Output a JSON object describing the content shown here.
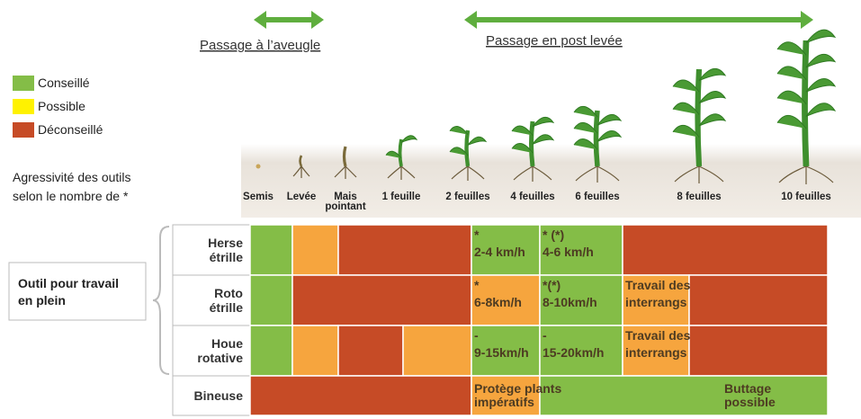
{
  "arrows": [
    {
      "label": "Passage à l’aveugle"
    },
    {
      "label": "Passage en post levée"
    }
  ],
  "legend": [
    {
      "label": "Conseillé",
      "color": "#84bd47"
    },
    {
      "label": "Possible",
      "color": "#fff200"
    },
    {
      "label": "Déconseillé",
      "color": "#c64b26"
    }
  ],
  "note": [
    "Agressivité des outils",
    "selon le nombre de *"
  ],
  "stages": [
    [
      "Semis"
    ],
    [
      "Levée"
    ],
    [
      "Mais",
      "pointant"
    ],
    [
      "1 feuille"
    ],
    [
      "2 feuilles"
    ],
    [
      "4 feuilles"
    ],
    [
      "6 feuilles"
    ],
    [
      "8 feuilles"
    ],
    [
      "10 feuilles"
    ]
  ],
  "group_label": [
    "Outil pour travail",
    "en plein"
  ],
  "rows": [
    {
      "label": [
        "Herse",
        "étrille"
      ],
      "cells": [
        {
          "color": "#84bd47"
        },
        {
          "color": "#f6a53e"
        },
        {
          "color": "#c64b26"
        },
        {
          "color": "#84bd47",
          "text": [
            "*",
            "2-4 km/h"
          ]
        },
        {
          "color": "#84bd47",
          "text": [
            "* (*)",
            "4-6 km/h"
          ]
        },
        {
          "color": "#c64b26"
        }
      ]
    },
    {
      "label": [
        "Roto",
        "étrille"
      ],
      "cells": [
        {
          "color": "#84bd47"
        },
        {
          "color": "#c64b26"
        },
        {
          "color": "#f6a53e",
          "text": [
            "*",
            "6-8km/h"
          ]
        },
        {
          "color": "#84bd47",
          "text": [
            "*(*)",
            "8-10km/h"
          ]
        },
        {
          "color": "#f6a53e",
          "text": [
            "Travail des",
            "interrangs"
          ]
        },
        {
          "color": "#c64b26"
        }
      ]
    },
    {
      "label": [
        "Houe",
        "rotative"
      ],
      "cells": [
        {
          "color": "#84bd47"
        },
        {
          "color": "#f6a53e"
        },
        {
          "color": "#c64b26"
        },
        {
          "color": "#f6a53e"
        },
        {
          "color": "#84bd47",
          "text": [
            "-",
            "9-15km/h"
          ]
        },
        {
          "color": "#84bd47",
          "text": [
            "-",
            "15-20km/h"
          ]
        },
        {
          "color": "#f6a53e",
          "text": [
            "Travail des",
            "interrangs"
          ]
        },
        {
          "color": "#c64b26"
        }
      ]
    },
    {
      "label": [
        "Bineuse"
      ],
      "cells": [
        {
          "color": "#c64b26"
        },
        {
          "color": "#f6a53e",
          "text": [
            "Protège plants",
            "impératifs"
          ]
        },
        {
          "color": "#84bd47",
          "text": [
            "Buttage",
            "possible"
          ]
        }
      ]
    }
  ]
}
